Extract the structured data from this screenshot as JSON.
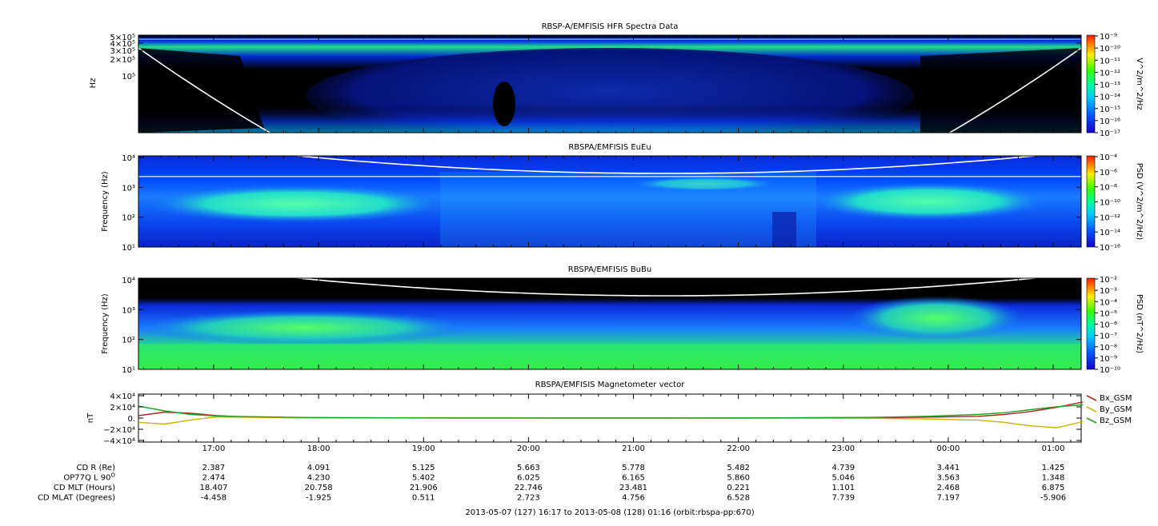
{
  "chart_data": [
    {
      "type": "heatmap",
      "title": "RBSP-A/EMFISIS  HFR Spectra Data",
      "ylabel": "Hz",
      "yscale": "log",
      "ytick_labels": [
        "5×10⁵",
        "4×10⁵",
        "3×10⁵",
        "2×10⁵",
        "10⁵"
      ],
      "colorbar": {
        "label": "V^2/m^2/Hz",
        "scale": "log",
        "tick_labels": [
          "10⁻⁹",
          "10⁻¹⁰",
          "10⁻¹¹",
          "10⁻¹²",
          "10⁻¹³",
          "10⁻¹⁴",
          "10⁻¹⁵",
          "10⁻¹⁶",
          "10⁻¹⁷"
        ]
      },
      "overlay": "white curve (upper hybrid / cyclotron line)"
    },
    {
      "type": "heatmap",
      "title": "RBSPA/EMFISIS  EuEu",
      "ylabel": "Frequency (Hz)",
      "yscale": "log",
      "ytick_labels": [
        "10⁴",
        "10³",
        "10²",
        "10¹"
      ],
      "colorbar": {
        "label": "PSD (V^2/m^2/Hz)",
        "scale": "log",
        "tick_labels": [
          "10⁻⁴",
          "10⁻⁶",
          "10⁻⁸",
          "10⁻¹⁰",
          "10⁻¹²",
          "10⁻¹⁴",
          "10⁻¹⁶"
        ]
      },
      "overlay": "white curve (electron cyclotron frequency)"
    },
    {
      "type": "heatmap",
      "title": "RBSPA/EMFISIS  BuBu",
      "ylabel": "Frequency (Hz)",
      "yscale": "log",
      "ytick_labels": [
        "10⁴",
        "10³",
        "10²",
        "10¹"
      ],
      "colorbar": {
        "label": "PSD (nT^2/Hz)",
        "scale": "log",
        "tick_labels": [
          "10⁻²",
          "10⁻³",
          "10⁻⁴",
          "10⁻⁵",
          "10⁻⁶",
          "10⁻⁷",
          "10⁻⁸",
          "10⁻⁹",
          "10⁻¹⁰"
        ]
      },
      "overlay": "white curve (electron cyclotron frequency)"
    },
    {
      "type": "line",
      "title": "RBSPA/EMFISIS  Magnetometer vector",
      "ylabel": "nT",
      "ylim": [
        -40000,
        40000
      ],
      "ytick_labels": [
        "4×10⁴",
        "2×10⁴",
        "0.",
        "−2×10⁴",
        "−4×10⁴"
      ],
      "x_hours": [
        0.0,
        0.25,
        0.5,
        0.75,
        1.0,
        1.5,
        2.0,
        3.0,
        4.0,
        5.0,
        6.0,
        7.0,
        7.5,
        8.0,
        8.25,
        8.5,
        8.75,
        9.0
      ],
      "legend": "right",
      "series": [
        {
          "name": "Bx_GSM",
          "color": "#b22222",
          "values": [
            4000,
            10000,
            8000,
            4000,
            2000,
            700,
            300,
            100,
            100,
            100,
            200,
            600,
            1500,
            3000,
            6000,
            11000,
            18000,
            27000
          ]
        },
        {
          "name": "By_GSM",
          "color": "#c8b400",
          "values": [
            -7000,
            -10000,
            -3000,
            2000,
            1500,
            600,
            300,
            100,
            0,
            0,
            -100,
            -400,
            -1500,
            -3500,
            -7000,
            -13000,
            -16000,
            -6000
          ]
        },
        {
          "name": "Bz_GSM",
          "color": "#20a020",
          "values": [
            20000,
            12000,
            6000,
            3500,
            2500,
            1200,
            600,
            300,
            200,
            200,
            400,
            1200,
            3000,
            6000,
            9000,
            14000,
            19000,
            22000
          ]
        }
      ]
    }
  ],
  "time_axis": {
    "ticks": [
      "17:00",
      "18:00",
      "19:00",
      "20:00",
      "21:00",
      "22:00",
      "23:00",
      "00:00",
      "01:00"
    ],
    "range_label": "2013-05-07 (127) 16:17 to 2013-05-08 (128) 01:16 (orbit:rbspa-pp:670)"
  },
  "ephemeris": {
    "rows": [
      {
        "label": "CD R (Re)",
        "values": [
          "2.387",
          "4.091",
          "5.125",
          "5.663",
          "5.778",
          "5.482",
          "4.739",
          "3.441",
          "1.425"
        ]
      },
      {
        "label": "OP77Q L 90",
        "label_sup": "O",
        "values": [
          "2.474",
          "4.230",
          "5.402",
          "6.025",
          "6.165",
          "5.860",
          "5.046",
          "3.563",
          "1.348"
        ]
      },
      {
        "label": "CD MLT (Hours)",
        "values": [
          "18.407",
          "20.758",
          "21.906",
          "22.746",
          "23.481",
          "0.221",
          "1.101",
          "2.468",
          "6.875"
        ]
      },
      {
        "label": "CD MLAT (Degrees)",
        "values": [
          "-4.458",
          "-1.925",
          "0.511",
          "2.723",
          "4.756",
          "6.528",
          "7.739",
          "7.197",
          "-5.906"
        ]
      }
    ]
  }
}
